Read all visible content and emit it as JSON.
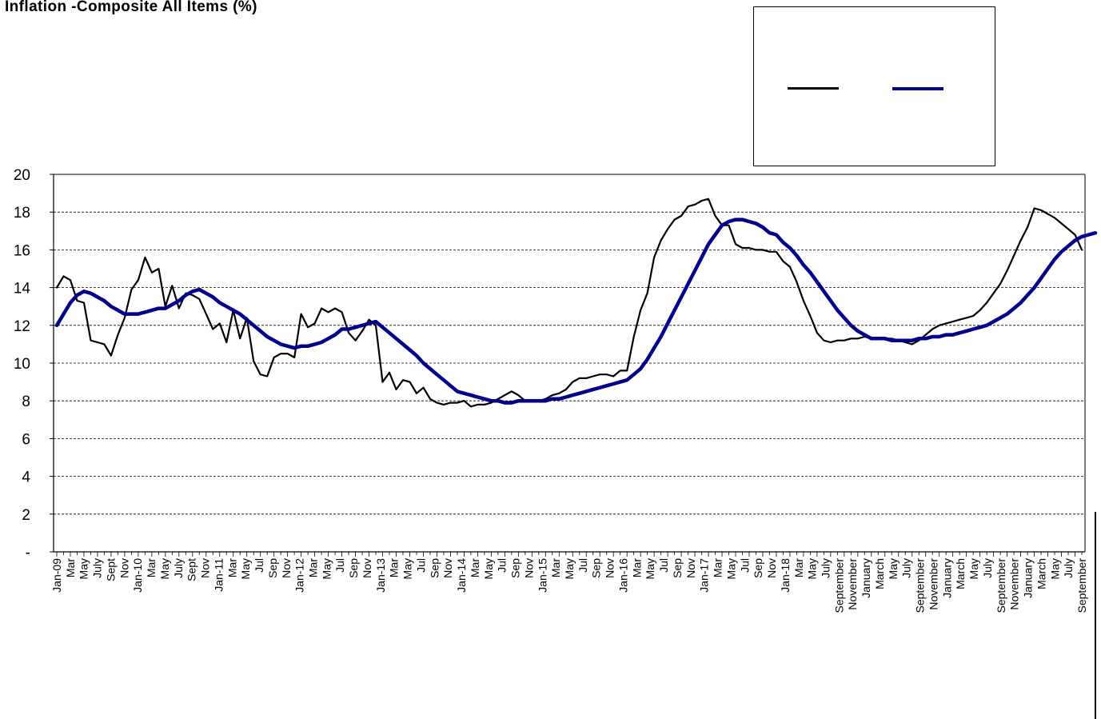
{
  "chart_data": {
    "type": "line",
    "title": "Inflation -Composite All Items (%)",
    "ylim": [
      0,
      20
    ],
    "y_ticks": [
      "-",
      "2",
      "4",
      "6",
      "8",
      "10",
      "12",
      "14",
      "16",
      "18",
      "20"
    ],
    "grid": "horizontal dashed",
    "legend_position": "top-right",
    "x_tick_labels": [
      "Jan-09",
      "Mar",
      "May",
      "July",
      "Sept",
      "Nov",
      "Jan-10",
      "Mar",
      "May",
      "July",
      "Sept",
      "Nov",
      "Jan-11",
      "Mar",
      "May",
      "Jul",
      "Sep",
      "Nov",
      "Jan-12",
      "Mar",
      "May",
      "Jul",
      "Sep",
      "Nov",
      "Jan-13",
      "Mar",
      "May",
      "Jul",
      "Sep",
      "Nov",
      "Jan-14",
      "Mar",
      "May",
      "Jul",
      "Sep",
      "Nov",
      "Jan-15",
      "Mar",
      "May",
      "Jul",
      "Sep",
      "Nov",
      "Jan-16",
      "Mar",
      "May",
      "Jul",
      "Sep",
      "Nov",
      "Jan-17",
      "Mar",
      "May",
      "Jul",
      "Sep",
      "Nov",
      "Jan-18",
      "Mar",
      "May",
      "July",
      "September",
      "November",
      "January",
      "March",
      "May",
      "July",
      "September",
      "November",
      "January",
      "March",
      "May",
      "July",
      "September",
      "November",
      "January",
      "March",
      "May",
      "July",
      "September"
    ],
    "series": [
      {
        "color": "#000000",
        "values": [
          14.0,
          14.6,
          14.4,
          13.3,
          13.2,
          11.2,
          11.1,
          11.0,
          10.4,
          11.5,
          12.4,
          13.9,
          14.4,
          15.6,
          14.8,
          15.0,
          13.0,
          14.1,
          12.9,
          13.7,
          13.6,
          13.4,
          12.6,
          11.8,
          12.1,
          11.1,
          12.8,
          11.3,
          12.4,
          10.1,
          9.4,
          9.3,
          10.3,
          10.5,
          10.5,
          10.3,
          12.6,
          11.9,
          12.1,
          12.9,
          12.7,
          12.9,
          12.7,
          11.6,
          11.2,
          11.7,
          12.3,
          12.0,
          9.0,
          9.5,
          8.6,
          9.1,
          9.0,
          8.4,
          8.7,
          8.1,
          7.9,
          7.8,
          7.9,
          7.9,
          8.0,
          7.7,
          7.8,
          7.8,
          7.9,
          8.1,
          8.3,
          8.5,
          8.3,
          8.0,
          8.0,
          8.0,
          8.1,
          8.3,
          8.4,
          8.6,
          9.0,
          9.2,
          9.2,
          9.3,
          9.4,
          9.4,
          9.3,
          9.6,
          9.6,
          11.4,
          12.8,
          13.7,
          15.6,
          16.5,
          17.1,
          17.6,
          17.8,
          18.3,
          18.4,
          18.6,
          18.7,
          17.8,
          17.3,
          17.3,
          16.3,
          16.1,
          16.1,
          16.0,
          16.0,
          15.9,
          15.9,
          15.4,
          15.1,
          14.3,
          13.3,
          12.5,
          11.6,
          11.2,
          11.1,
          11.2,
          11.2,
          11.3,
          11.3,
          11.4,
          11.3,
          11.3,
          11.3,
          11.3,
          11.2,
          11.1,
          11.0,
          11.2,
          11.5,
          11.8,
          12.0,
          12.1,
          12.2,
          12.3,
          12.4,
          12.5,
          12.8,
          13.2,
          13.7,
          14.2,
          14.9,
          15.7,
          16.5,
          17.2,
          18.2,
          18.1,
          17.9,
          17.7,
          17.4,
          17.1,
          16.8,
          16.0
        ]
      },
      {
        "color": "#00008B",
        "values": [
          12.0,
          12.6,
          13.2,
          13.6,
          13.8,
          13.7,
          13.5,
          13.3,
          13.0,
          12.8,
          12.6,
          12.6,
          12.6,
          12.7,
          12.8,
          12.9,
          12.9,
          13.1,
          13.3,
          13.6,
          13.8,
          13.9,
          13.7,
          13.5,
          13.2,
          13.0,
          12.8,
          12.6,
          12.3,
          12.0,
          11.7,
          11.4,
          11.2,
          11.0,
          10.9,
          10.8,
          10.9,
          10.9,
          11.0,
          11.1,
          11.3,
          11.5,
          11.8,
          11.8,
          11.9,
          12.0,
          12.1,
          12.2,
          11.9,
          11.6,
          11.3,
          11.0,
          10.7,
          10.4,
          10.0,
          9.7,
          9.4,
          9.1,
          8.8,
          8.5,
          8.4,
          8.3,
          8.2,
          8.1,
          8.0,
          8.0,
          7.9,
          7.9,
          8.0,
          8.0,
          8.0,
          8.0,
          8.0,
          8.1,
          8.1,
          8.2,
          8.3,
          8.4,
          8.5,
          8.6,
          8.7,
          8.8,
          8.9,
          9.0,
          9.1,
          9.4,
          9.7,
          10.2,
          10.8,
          11.4,
          12.1,
          12.8,
          13.5,
          14.2,
          14.9,
          15.6,
          16.3,
          16.8,
          17.3,
          17.5,
          17.6,
          17.6,
          17.5,
          17.4,
          17.2,
          16.9,
          16.8,
          16.4,
          16.1,
          15.7,
          15.2,
          14.8,
          14.3,
          13.8,
          13.3,
          12.8,
          12.4,
          12.0,
          11.7,
          11.5,
          11.3,
          11.3,
          11.3,
          11.2,
          11.2,
          11.2,
          11.2,
          11.3,
          11.3,
          11.4,
          11.4,
          11.5,
          11.5,
          11.6,
          11.7,
          11.8,
          11.9,
          12.0,
          12.2,
          12.4,
          12.6,
          12.9,
          13.2,
          13.6,
          14.0,
          14.5,
          15.0,
          15.5,
          15.9,
          16.2,
          16.5,
          16.7,
          16.8,
          16.9
        ]
      }
    ]
  },
  "page": {
    "colors": {
      "background": "#ffffff",
      "axis": "#000000",
      "grid": "#000000"
    }
  }
}
